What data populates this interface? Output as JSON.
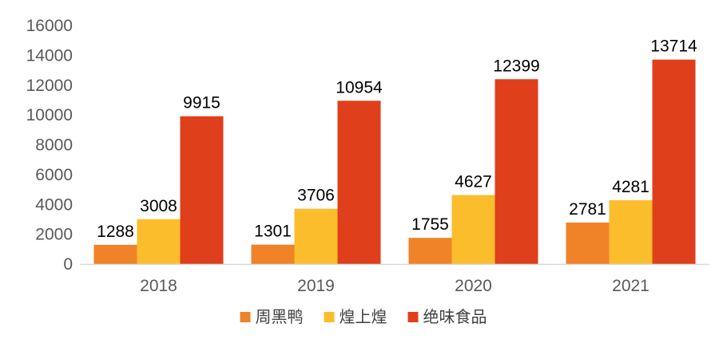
{
  "chart_data": {
    "type": "bar",
    "title": "",
    "xlabel": "",
    "ylabel": "",
    "categories": [
      "2018",
      "2019",
      "2020",
      "2021"
    ],
    "ylim": [
      0,
      16000
    ],
    "yticks": [
      0,
      2000,
      4000,
      6000,
      8000,
      10000,
      12000,
      14000,
      16000
    ],
    "grid": false,
    "legend_position": "bottom",
    "series": [
      {
        "name": "周黑鸭",
        "color": "#f08227",
        "values": [
          1288,
          1301,
          1755,
          2781
        ]
      },
      {
        "name": "煌上煌",
        "color": "#fbbd2c",
        "values": [
          3008,
          3706,
          4627,
          4281
        ]
      },
      {
        "name": "绝味食品",
        "color": "#e03f1b",
        "values": [
          9915,
          10954,
          12399,
          13714
        ]
      }
    ]
  }
}
